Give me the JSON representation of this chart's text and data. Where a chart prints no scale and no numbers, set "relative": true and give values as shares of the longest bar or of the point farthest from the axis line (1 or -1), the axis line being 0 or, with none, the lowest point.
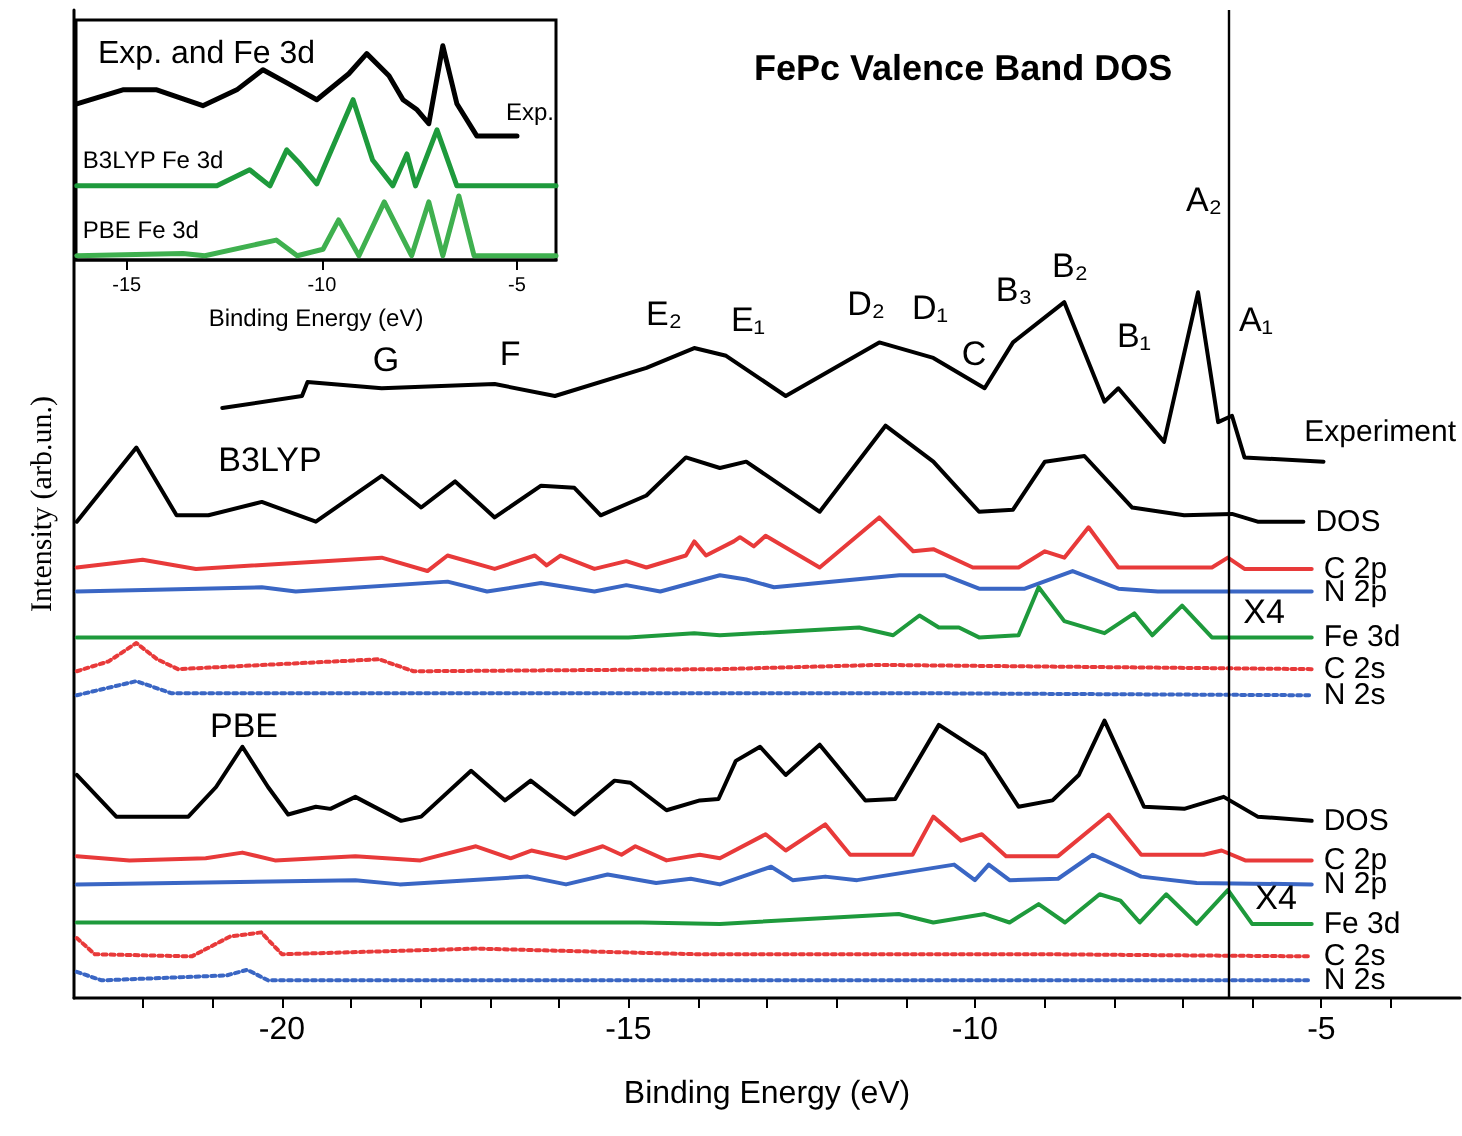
{
  "chart_data": [
    {
      "type": "line",
      "title": "FePc Valence Band DOS",
      "xlabel": "Binding Energy (eV)",
      "ylabel": "Intensity (arb.un.)",
      "relative": true,
      "grid": false,
      "legend": false,
      "marker": "none",
      "xlim": [
        -23,
        -3
      ],
      "xticks": [
        {
          "value": -22,
          "label": null
        },
        {
          "value": -21,
          "label": null
        },
        -20,
        {
          "value": -19,
          "label": null
        },
        {
          "value": -18,
          "label": null
        },
        {
          "value": -17,
          "label": null
        },
        {
          "value": -16,
          "label": null
        },
        -15,
        {
          "value": -14,
          "label": null
        },
        {
          "value": -13,
          "label": null
        },
        {
          "value": -12,
          "label": null
        },
        {
          "value": -11,
          "label": null
        },
        -10,
        {
          "value": -9,
          "label": null
        },
        {
          "value": -8,
          "label": null
        },
        {
          "value": -7,
          "label": null
        },
        {
          "value": -6,
          "label": null
        },
        -5,
        {
          "value": -4,
          "label": null
        }
      ],
      "ref_lines": [
        {
          "axis": "x",
          "value": -6.35,
          "label": null,
          "color": "#000000"
        }
      ],
      "annotations": [
        "G",
        "F",
        "E₂",
        "E₁",
        "D₂",
        "D₁",
        "C",
        "B₃",
        "B₂",
        "B₁",
        "A₂",
        "A₁",
        "B3LYP",
        "PBE",
        "X4",
        "X4"
      ],
      "series": [
        {
          "name": "Experiment",
          "color": "#000000",
          "x": [
            -20.86,
            -19.71,
            -19.63,
            -18.56,
            -16.93,
            -16.06,
            -14.74,
            -14.05,
            -13.59,
            -12.73,
            -11.38,
            -10.6,
            -9.86,
            -9.45,
            -8.71,
            -8.13,
            -7.93,
            -7.27,
            -6.78,
            -6.49,
            -6.29,
            -6.11,
            -4.97
          ],
          "values": [
            0.836,
            0.853,
            0.873,
            0.864,
            0.87,
            0.853,
            0.893,
            0.921,
            0.91,
            0.853,
            0.929,
            0.907,
            0.864,
            0.929,
            0.986,
            0.845,
            0.864,
            0.788,
            1.0,
            0.816,
            0.825,
            0.766,
            0.76
          ]
        },
        {
          "name": "DOS",
          "color": "#000000",
          "x": [
            -22.96,
            -22.1,
            -21.52,
            -21.06,
            -20.29,
            -19.51,
            -18.56,
            -17.99,
            -17.5,
            -16.93,
            -16.26,
            -15.78,
            -15.4,
            -14.74,
            -14.17,
            -13.68,
            -13.3,
            -12.24,
            -11.29,
            -10.6,
            -9.94,
            -9.45,
            -8.99,
            -8.42,
            -7.73,
            -6.98,
            -6.29,
            -5.92,
            -5.26
          ],
          "values": [
            0.675,
            0.78,
            0.684,
            0.684,
            0.703,
            0.675,
            0.74,
            0.695,
            0.732,
            0.681,
            0.726,
            0.723,
            0.684,
            0.712,
            0.766,
            0.751,
            0.76,
            0.689,
            0.811,
            0.76,
            0.689,
            0.692,
            0.76,
            0.768,
            0.695,
            0.684,
            0.686,
            0.675,
            0.675
          ]
        },
        {
          "name": "C 2p",
          "color": "#e83a3a",
          "x": [
            -22.96,
            -22.01,
            -21.24,
            -18.56,
            -17.9,
            -17.61,
            -16.93,
            -16.35,
            -16.18,
            -15.98,
            -15.49,
            -15.03,
            -14.74,
            -14.17,
            -14.05,
            -13.88,
            -13.48,
            -13.39,
            -13.19,
            -13.02,
            -12.24,
            -11.38,
            -10.89,
            -10.6,
            -10.03,
            -9.37,
            -8.99,
            -8.71,
            -8.36,
            -7.93,
            -6.58,
            -6.35,
            -6.11,
            -5.14
          ],
          "values": [
            0.61,
            0.621,
            0.608,
            0.624,
            0.605,
            0.627,
            0.608,
            0.627,
            0.613,
            0.627,
            0.608,
            0.619,
            0.61,
            0.627,
            0.647,
            0.627,
            0.647,
            0.653,
            0.64,
            0.655,
            0.61,
            0.681,
            0.633,
            0.636,
            0.61,
            0.61,
            0.633,
            0.624,
            0.667,
            0.61,
            0.61,
            0.624,
            0.608,
            0.608
          ]
        },
        {
          "name": "N 2p",
          "color": "#3a66c4",
          "x": [
            -22.96,
            -20.29,
            -19.8,
            -17.61,
            -17.04,
            -16.26,
            -15.49,
            -15.03,
            -14.54,
            -13.68,
            -13.3,
            -12.9,
            -11.09,
            -10.43,
            -9.94,
            -9.28,
            -8.59,
            -7.93,
            -7.36,
            -5.14
          ],
          "values": [
            0.576,
            0.582,
            0.576,
            0.59,
            0.576,
            0.588,
            0.576,
            0.585,
            0.576,
            0.599,
            0.593,
            0.582,
            0.599,
            0.599,
            0.58,
            0.58,
            0.605,
            0.58,
            0.576,
            0.576
          ]
        },
        {
          "name": "Fe 3d",
          "color": "#1e9a3c",
          "x": [
            -22.96,
            -15.0,
            -14.05,
            -13.68,
            -11.67,
            -11.18,
            -10.8,
            -10.52,
            -10.23,
            -9.94,
            -9.37,
            -9.08,
            -8.71,
            -8.13,
            -7.7,
            -7.44,
            -7.01,
            -6.58,
            -5.14
          ],
          "values": [
            0.511,
            0.511,
            0.517,
            0.514,
            0.525,
            0.514,
            0.542,
            0.525,
            0.525,
            0.511,
            0.514,
            0.582,
            0.534,
            0.517,
            0.545,
            0.514,
            0.556,
            0.511,
            0.511
          ]
        },
        {
          "name": "C 2s",
          "color": "#e83a3a",
          "line_style": "dotted",
          "x": [
            -22.96,
            -22.5,
            -22.1,
            -21.8,
            -21.5,
            -18.6,
            -18.1,
            -13.68,
            -11.38,
            -5.14
          ],
          "values": [
            0.463,
            0.477,
            0.503,
            0.48,
            0.466,
            0.48,
            0.463,
            0.466,
            0.472,
            0.466
          ]
        },
        {
          "name": "N 2s",
          "color": "#3a66c4",
          "line_style": "dotted",
          "x": [
            -22.96,
            -22.1,
            -21.6,
            -13.68,
            -11.0,
            -5.14
          ],
          "values": [
            0.429,
            0.449,
            0.432,
            0.432,
            0.432,
            0.429
          ]
        },
        {
          "name": "DOS",
          "color": "#000000",
          "x": [
            -22.96,
            -22.39,
            -21.35,
            -20.95,
            -20.57,
            -20.2,
            -19.91,
            -19.51,
            -19.3,
            -18.94,
            -18.28,
            -17.99,
            -17.27,
            -16.78,
            -16.41,
            -15.78,
            -15.2,
            -14.97,
            -14.45,
            -13.97,
            -13.7,
            -13.45,
            -13.1,
            -12.73,
            -12.24,
            -11.58,
            -11.15,
            -10.52,
            -9.86,
            -9.37,
            -8.88,
            -8.5,
            -8.13,
            -7.56,
            -6.98,
            -6.41,
            -5.92,
            -5.14
          ],
          "values": [
            0.316,
            0.257,
            0.257,
            0.299,
            0.356,
            0.299,
            0.26,
            0.271,
            0.268,
            0.285,
            0.251,
            0.257,
            0.322,
            0.28,
            0.308,
            0.26,
            0.308,
            0.305,
            0.266,
            0.28,
            0.282,
            0.336,
            0.356,
            0.316,
            0.359,
            0.28,
            0.282,
            0.387,
            0.345,
            0.271,
            0.28,
            0.316,
            0.393,
            0.271,
            0.268,
            0.285,
            0.257,
            0.251
          ]
        },
        {
          "name": "C 2p",
          "color": "#e83a3a",
          "x": [
            -22.96,
            -22.2,
            -21.1,
            -20.57,
            -20.1,
            -18.94,
            -18.0,
            -17.2,
            -16.7,
            -16.4,
            -15.9,
            -15.37,
            -15.1,
            -14.9,
            -14.45,
            -13.97,
            -13.68,
            -13.02,
            -12.73,
            -12.16,
            -11.8,
            -10.9,
            -10.6,
            -10.2,
            -9.9,
            -9.55,
            -8.8,
            -8.07,
            -7.6,
            -6.7,
            -6.44,
            -6.1,
            -5.14
          ],
          "values": [
            0.201,
            0.195,
            0.198,
            0.206,
            0.195,
            0.201,
            0.195,
            0.215,
            0.198,
            0.209,
            0.198,
            0.215,
            0.203,
            0.215,
            0.195,
            0.203,
            0.198,
            0.232,
            0.209,
            0.246,
            0.203,
            0.203,
            0.257,
            0.223,
            0.232,
            0.201,
            0.201,
            0.26,
            0.203,
            0.203,
            0.209,
            0.195,
            0.195
          ]
        },
        {
          "name": "N 2p",
          "color": "#3a66c4",
          "x": [
            -22.96,
            -18.94,
            -18.3,
            -16.45,
            -15.9,
            -15.3,
            -14.6,
            -14.1,
            -13.68,
            -12.94,
            -12.63,
            -12.16,
            -11.7,
            -10.3,
            -10.0,
            -9.8,
            -9.5,
            -8.8,
            -8.3,
            -7.6,
            -6.8,
            -5.14
          ],
          "values": [
            0.161,
            0.167,
            0.161,
            0.172,
            0.161,
            0.175,
            0.163,
            0.169,
            0.161,
            0.186,
            0.167,
            0.172,
            0.167,
            0.189,
            0.167,
            0.189,
            0.167,
            0.169,
            0.203,
            0.172,
            0.163,
            0.161
          ]
        },
        {
          "name": "Fe 3d",
          "color": "#1e9a3c",
          "x": [
            -22.96,
            -14.8,
            -13.68,
            -11.1,
            -10.6,
            -9.86,
            -9.5,
            -9.08,
            -8.7,
            -8.2,
            -7.9,
            -7.62,
            -7.24,
            -6.8,
            -6.35,
            -6.0,
            -5.14
          ],
          "values": [
            0.107,
            0.107,
            0.105,
            0.119,
            0.107,
            0.119,
            0.107,
            0.133,
            0.107,
            0.147,
            0.138,
            0.107,
            0.147,
            0.105,
            0.153,
            0.105,
            0.105
          ]
        },
        {
          "name": "C 2s",
          "color": "#e83a3a",
          "line_style": "dotted",
          "x": [
            -22.96,
            -22.7,
            -21.3,
            -20.75,
            -20.3,
            -20.0,
            -17.2,
            -14.0,
            -9.0,
            -5.14
          ],
          "values": [
            0.085,
            0.062,
            0.059,
            0.087,
            0.093,
            0.062,
            0.07,
            0.062,
            0.062,
            0.059
          ]
        },
        {
          "name": "N 2s",
          "color": "#3a66c4",
          "line_style": "dotted",
          "x": [
            -22.96,
            -22.6,
            -20.8,
            -20.5,
            -20.2,
            -5.14
          ],
          "values": [
            0.037,
            0.025,
            0.032,
            0.04,
            0.025,
            0.025
          ]
        }
      ]
    },
    {
      "type": "line",
      "title": "Exp. and Fe 3d",
      "xlabel": "Binding Energy (eV)",
      "relative": true,
      "grid": false,
      "legend": false,
      "marker": "none",
      "xlim": [
        -16.3,
        -4
      ],
      "xticks": [
        -15,
        -10,
        -5
      ],
      "series": [
        {
          "name": "Exp.",
          "color": "#000000",
          "x": [
            -16.28,
            -15.1,
            -14.23,
            -13.05,
            -12.18,
            -11.51,
            -10.85,
            -10.13,
            -9.31,
            -8.85,
            -8.28,
            -7.92,
            -7.56,
            -7.26,
            -6.9,
            -6.54,
            -6.03,
            -5.0
          ],
          "values": [
            0.729,
            0.794,
            0.794,
            0.72,
            0.794,
            0.888,
            0.822,
            0.748,
            0.869,
            0.963,
            0.86,
            0.748,
            0.701,
            0.636,
            1.0,
            0.729,
            0.579,
            0.579
          ]
        },
        {
          "name": "B3LYP Fe 3d",
          "color": "#1e9a3c",
          "x": [
            -16.28,
            -12.69,
            -11.85,
            -11.33,
            -10.9,
            -10.56,
            -10.13,
            -9.2,
            -8.7,
            -8.18,
            -7.82,
            -7.6,
            -7.05,
            -6.54,
            -4
          ],
          "values": [
            0.346,
            0.346,
            0.421,
            0.346,
            0.514,
            0.449,
            0.355,
            0.748,
            0.467,
            0.346,
            0.495,
            0.346,
            0.607,
            0.346,
            0.346
          ]
        },
        {
          "name": "PBE Fe 3d",
          "color": "#3fb04f",
          "x": [
            -16.28,
            -13.56,
            -13.0,
            -11.17,
            -10.63,
            -9.97,
            -9.57,
            -9.05,
            -8.4,
            -7.7,
            -7.26,
            -6.9,
            -6.49,
            -6.1,
            -4
          ],
          "values": [
            0.02,
            0.03,
            0.02,
            0.093,
            0.02,
            0.05,
            0.187,
            0.02,
            0.271,
            0.02,
            0.271,
            0.02,
            0.299,
            0.02,
            0.02
          ]
        }
      ]
    }
  ]
}
